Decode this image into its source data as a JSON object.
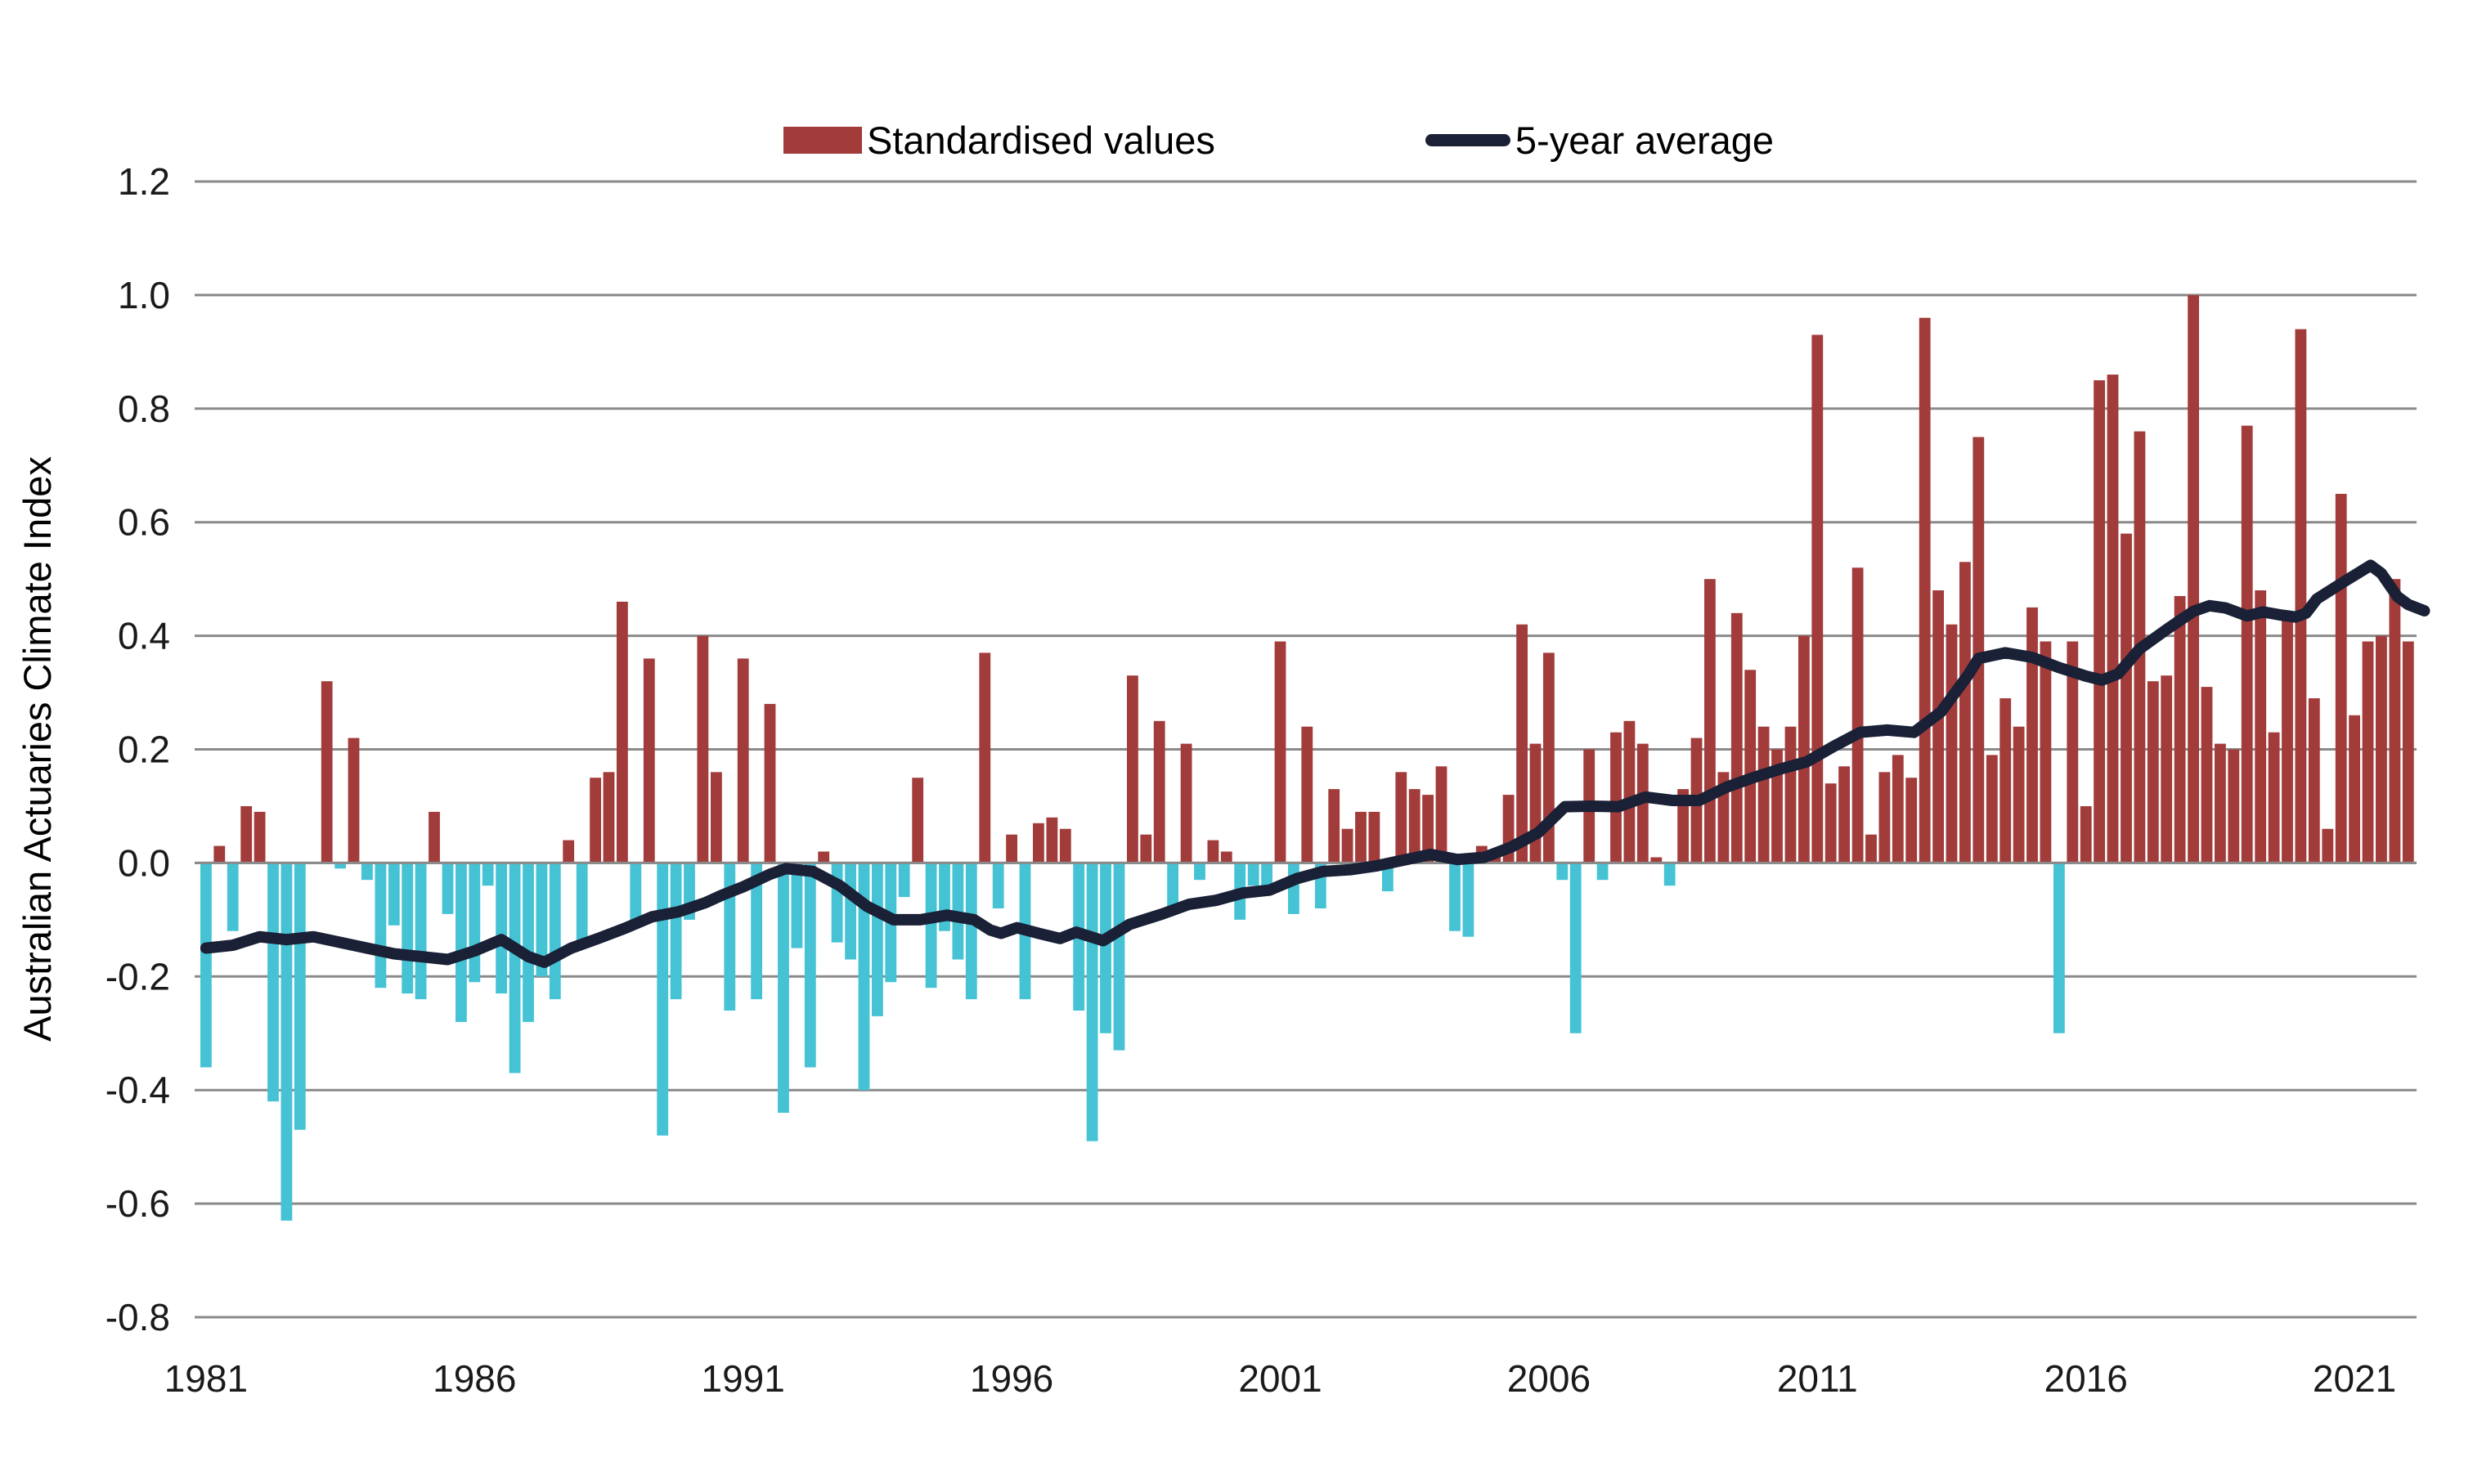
{
  "legend": {
    "bars_label": "Standardised values",
    "line_label": "5-year average"
  },
  "axes": {
    "ylabel": "Australian Actuaries Climate Index",
    "ytick_labels": [
      "1.2",
      "1.0",
      "0.8",
      "0.6",
      "0.4",
      "0.2",
      "0.0",
      "-0.2",
      "-0.4",
      "-0.6",
      "-0.8"
    ],
    "ytick_values": [
      1.2,
      1.0,
      0.8,
      0.6,
      0.4,
      0.2,
      0.0,
      -0.2,
      -0.4,
      -0.6,
      -0.8
    ],
    "xtick_labels": [
      "1981",
      "1986",
      "1991",
      "1996",
      "2001",
      "2006",
      "2011",
      "2016",
      "2021"
    ],
    "xtick_values": [
      1981,
      1986,
      1991,
      1996,
      2001,
      2006,
      2011,
      2016,
      2021
    ],
    "ylim": [
      -0.8,
      1.2
    ]
  },
  "colors": {
    "bar_positive": "#a23c3a",
    "bar_negative": "#45c3d5",
    "avg_line": "#1a2036",
    "gridline": "#8a8a8a",
    "tick_text": "#1a1a1a"
  },
  "chart_data": {
    "type": "bar",
    "title": "",
    "xlabel": "",
    "ylabel": "Australian Actuaries Climate Index",
    "ylim": [
      -0.8,
      1.2
    ],
    "grid": true,
    "legend_position": "top",
    "frequency": "quarterly",
    "start_year": 1981,
    "series": [
      {
        "name": "Standardised values",
        "type": "bar",
        "values": [
          -0.36,
          0.03,
          -0.12,
          0.1,
          0.09,
          -0.42,
          -0.63,
          -0.47,
          0.0,
          0.32,
          -0.01,
          0.22,
          -0.03,
          -0.22,
          -0.11,
          -0.23,
          -0.24,
          0.09,
          -0.09,
          -0.28,
          -0.21,
          -0.04,
          -0.23,
          -0.37,
          -0.28,
          -0.2,
          -0.24,
          0.04,
          -0.15,
          0.15,
          0.16,
          0.46,
          -0.1,
          0.36,
          -0.48,
          -0.24,
          -0.1,
          0.4,
          0.16,
          -0.26,
          0.36,
          -0.24,
          0.28,
          -0.44,
          -0.15,
          -0.36,
          0.02,
          -0.14,
          -0.17,
          -0.4,
          -0.27,
          -0.21,
          -0.06,
          0.15,
          -0.22,
          -0.12,
          -0.17,
          -0.24,
          0.37,
          -0.08,
          0.05,
          -0.24,
          0.07,
          0.08,
          0.06,
          -0.26,
          -0.49,
          -0.3,
          -0.33,
          0.33,
          0.05,
          0.25,
          -0.08,
          0.21,
          -0.03,
          0.04,
          0.02,
          -0.1,
          -0.04,
          -0.05,
          0.39,
          -0.09,
          0.24,
          -0.08,
          0.13,
          0.06,
          0.09,
          0.09,
          -0.05,
          0.16,
          0.13,
          0.12,
          0.17,
          -0.12,
          -0.13,
          0.03,
          0.02,
          0.12,
          0.42,
          0.21,
          0.37,
          -0.03,
          -0.3,
          0.2,
          -0.03,
          0.23,
          0.25,
          0.21,
          0.01,
          -0.04,
          0.13,
          0.22,
          0.5,
          0.16,
          0.44,
          0.34,
          0.24,
          0.2,
          0.24,
          0.4,
          0.93,
          0.14,
          0.17,
          0.52,
          0.05,
          0.16,
          0.19,
          0.15,
          0.96,
          0.48,
          0.42,
          0.53,
          0.75,
          0.19,
          0.29,
          0.24,
          0.45,
          0.39,
          -0.3,
          0.39,
          0.1,
          0.85,
          0.86,
          0.58,
          0.76,
          0.32,
          0.33,
          0.47,
          1.0,
          0.31,
          0.21,
          0.2,
          0.77,
          0.48,
          0.23,
          0.43,
          0.94,
          0.29,
          0.06,
          0.65,
          0.26,
          0.39,
          0.4,
          0.5,
          0.39
        ]
      },
      {
        "name": "5-year average",
        "type": "line",
        "points": [
          [
            1981.0,
            -0.15
          ],
          [
            1981.5,
            -0.145
          ],
          [
            1982.0,
            -0.13
          ],
          [
            1982.5,
            -0.135
          ],
          [
            1983.0,
            -0.13
          ],
          [
            1983.5,
            -0.14
          ],
          [
            1984.0,
            -0.15
          ],
          [
            1984.5,
            -0.16
          ],
          [
            1985.0,
            -0.165
          ],
          [
            1985.5,
            -0.17
          ],
          [
            1986.0,
            -0.155
          ],
          [
            1986.5,
            -0.135
          ],
          [
            1987.0,
            -0.165
          ],
          [
            1987.3,
            -0.175
          ],
          [
            1987.8,
            -0.15
          ],
          [
            1988.3,
            -0.133
          ],
          [
            1988.8,
            -0.115
          ],
          [
            1989.3,
            -0.095
          ],
          [
            1989.8,
            -0.086
          ],
          [
            1990.3,
            -0.07
          ],
          [
            1990.6,
            -0.057
          ],
          [
            1991.0,
            -0.042
          ],
          [
            1991.5,
            -0.02
          ],
          [
            1991.8,
            -0.01
          ],
          [
            1992.3,
            -0.015
          ],
          [
            1992.8,
            -0.04
          ],
          [
            1993.3,
            -0.076
          ],
          [
            1993.8,
            -0.1
          ],
          [
            1994.3,
            -0.1
          ],
          [
            1994.8,
            -0.092
          ],
          [
            1995.3,
            -0.1
          ],
          [
            1995.6,
            -0.118
          ],
          [
            1995.8,
            -0.124
          ],
          [
            1996.1,
            -0.114
          ],
          [
            1996.5,
            -0.124
          ],
          [
            1996.9,
            -0.133
          ],
          [
            1997.2,
            -0.122
          ],
          [
            1997.7,
            -0.137
          ],
          [
            1998.2,
            -0.108
          ],
          [
            1998.8,
            -0.09
          ],
          [
            1999.3,
            -0.073
          ],
          [
            1999.8,
            -0.066
          ],
          [
            2000.3,
            -0.053
          ],
          [
            2000.8,
            -0.048
          ],
          [
            2001.3,
            -0.028
          ],
          [
            2001.8,
            -0.015
          ],
          [
            2002.3,
            -0.012
          ],
          [
            2002.8,
            -0.005
          ],
          [
            2003.3,
            0.005
          ],
          [
            2003.8,
            0.015
          ],
          [
            2004.3,
            0.006
          ],
          [
            2004.8,
            0.01
          ],
          [
            2005.3,
            0.028
          ],
          [
            2005.8,
            0.053
          ],
          [
            2006.3,
            0.099
          ],
          [
            2006.8,
            0.1
          ],
          [
            2007.3,
            0.099
          ],
          [
            2007.8,
            0.116
          ],
          [
            2008.3,
            0.11
          ],
          [
            2008.8,
            0.11
          ],
          [
            2009.3,
            0.133
          ],
          [
            2009.8,
            0.15
          ],
          [
            2010.3,
            0.165
          ],
          [
            2010.8,
            0.178
          ],
          [
            2011.3,
            0.205
          ],
          [
            2011.8,
            0.23
          ],
          [
            2012.3,
            0.234
          ],
          [
            2012.8,
            0.23
          ],
          [
            2013.3,
            0.266
          ],
          [
            2013.8,
            0.33
          ],
          [
            2014.0,
            0.36
          ],
          [
            2014.5,
            0.37
          ],
          [
            2015.0,
            0.362
          ],
          [
            2015.5,
            0.344
          ],
          [
            2016.0,
            0.329
          ],
          [
            2016.3,
            0.322
          ],
          [
            2016.6,
            0.333
          ],
          [
            2017.0,
            0.377
          ],
          [
            2017.5,
            0.411
          ],
          [
            2018.0,
            0.443
          ],
          [
            2018.3,
            0.453
          ],
          [
            2018.6,
            0.449
          ],
          [
            2019.0,
            0.435
          ],
          [
            2019.3,
            0.442
          ],
          [
            2019.6,
            0.437
          ],
          [
            2019.9,
            0.433
          ],
          [
            2020.1,
            0.44
          ],
          [
            2020.3,
            0.465
          ],
          [
            2020.8,
            0.495
          ],
          [
            2021.3,
            0.524
          ],
          [
            2021.5,
            0.51
          ],
          [
            2021.8,
            0.469
          ],
          [
            2022.0,
            0.455
          ],
          [
            2022.3,
            0.444
          ]
        ]
      }
    ]
  }
}
